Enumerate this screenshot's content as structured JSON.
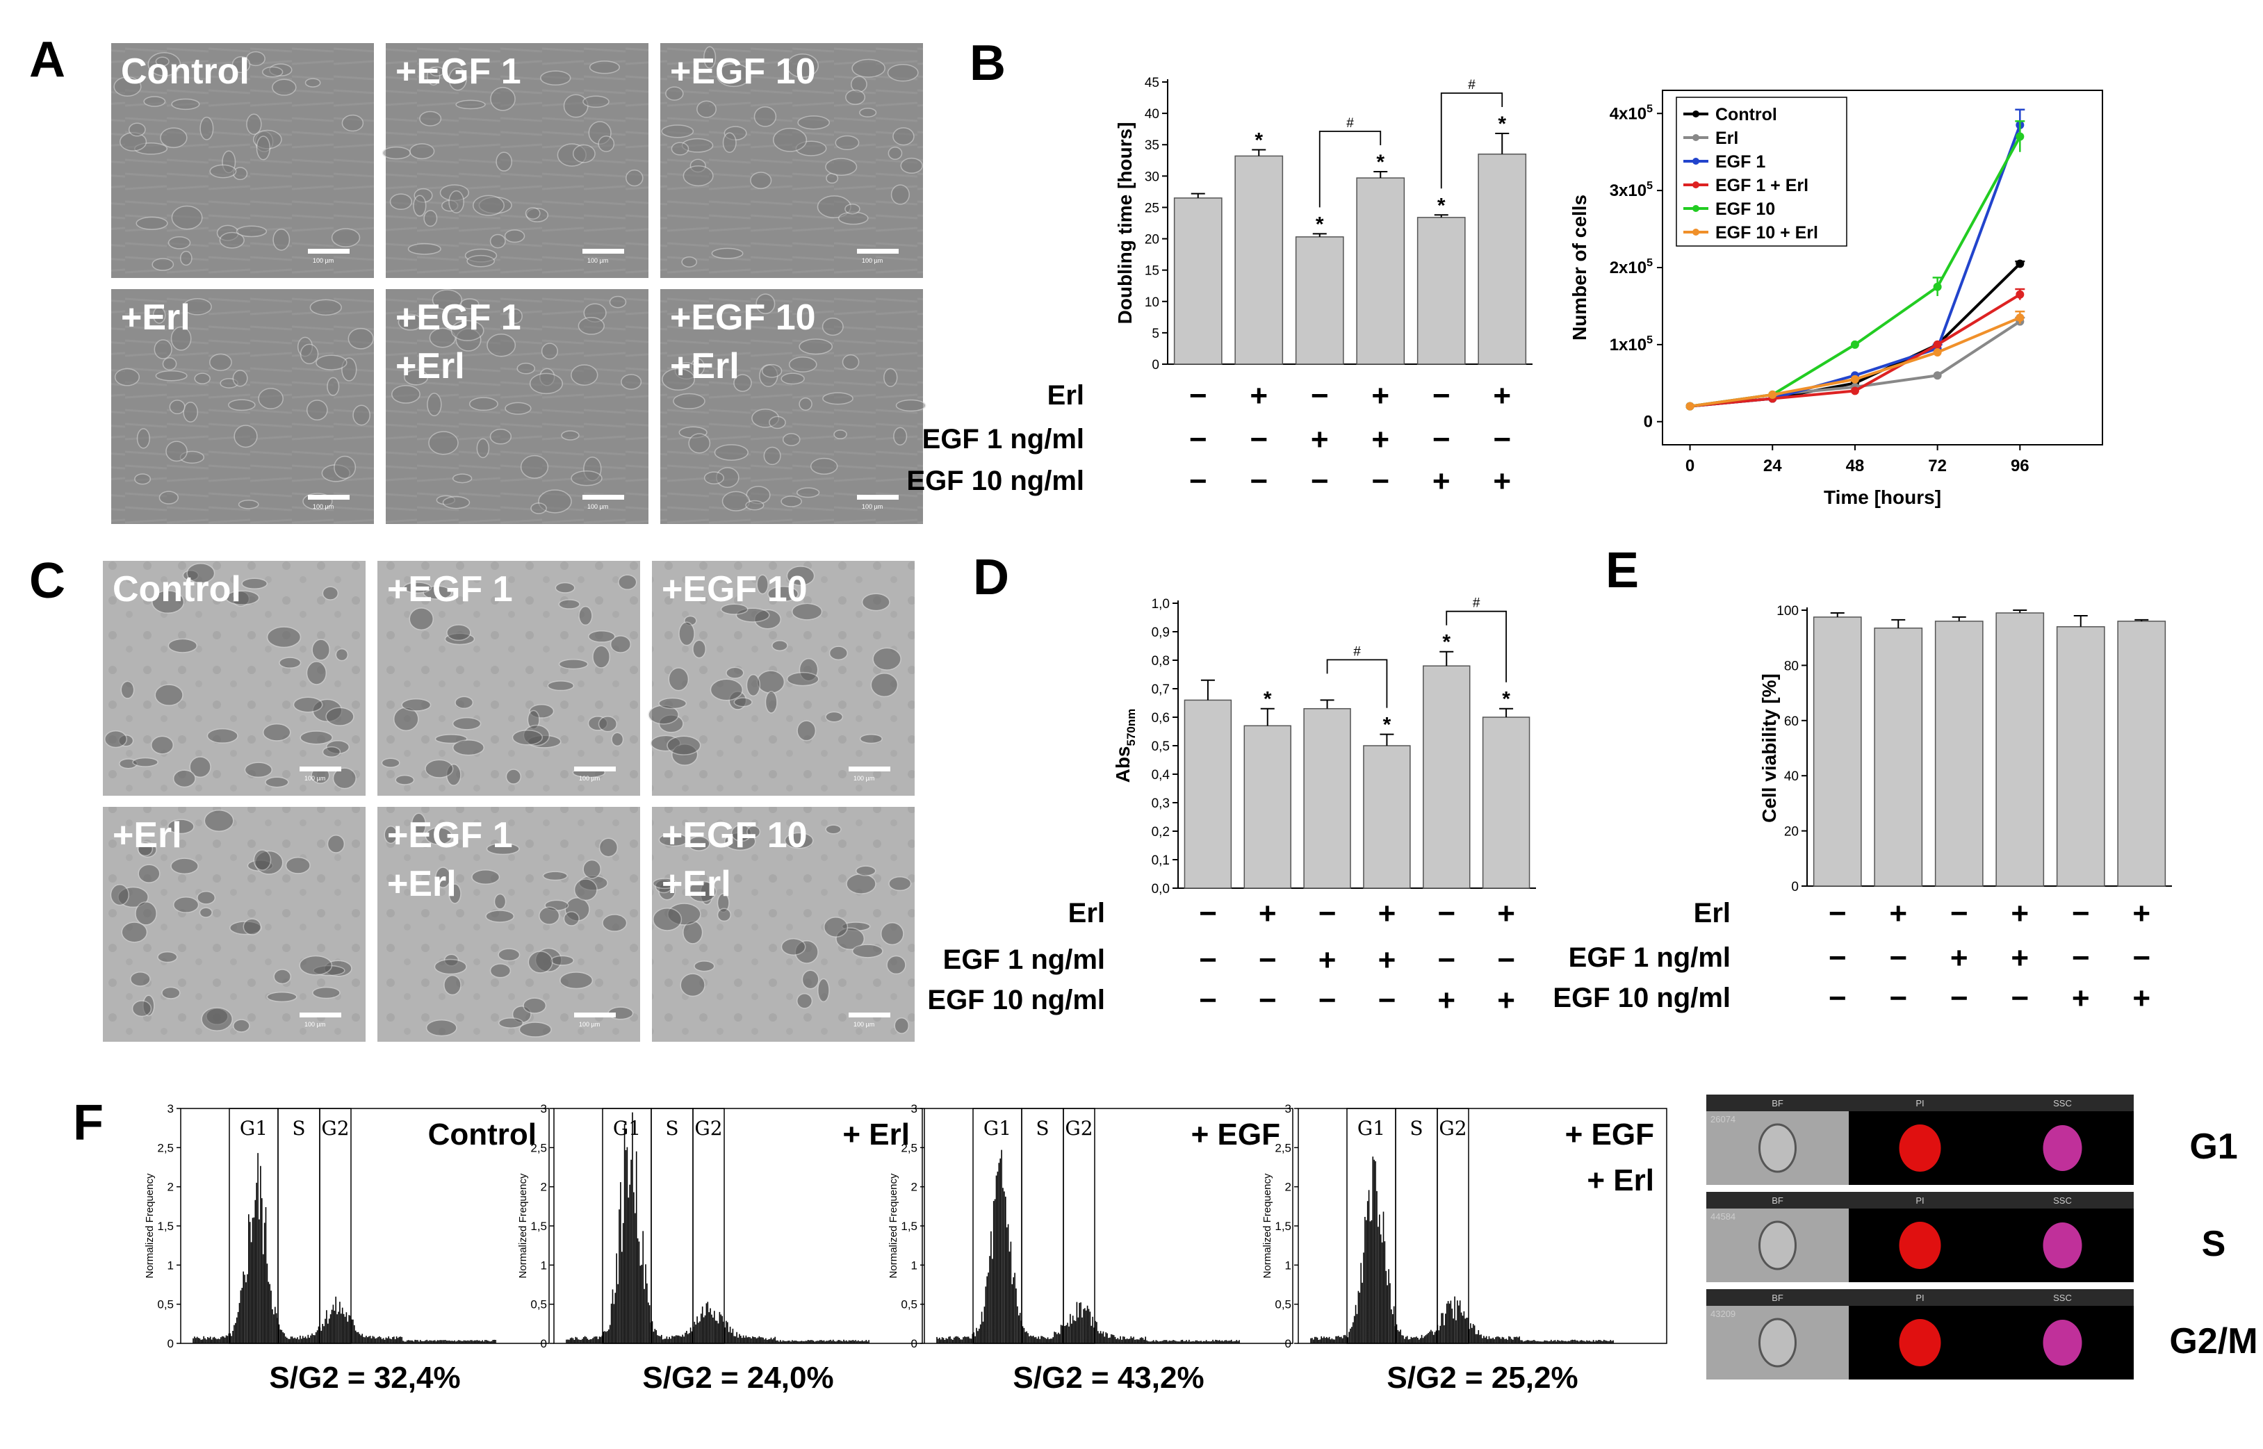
{
  "panels": {
    "A": "A",
    "B": "B",
    "C": "C",
    "D": "D",
    "E": "E",
    "F": "F"
  },
  "micrographs_A": {
    "labels": [
      [
        "Control"
      ],
      [
        "+EGF 1"
      ],
      [
        "+EGF 10"
      ],
      [
        "+Erl"
      ],
      [
        "+EGF 1",
        "+Erl"
      ],
      [
        "+EGF 10",
        "+Erl"
      ]
    ],
    "scale": "100 µm"
  },
  "micrographs_C": {
    "labels": [
      [
        "Control"
      ],
      [
        "+EGF 1"
      ],
      [
        "+EGF 10"
      ],
      [
        "+Erl"
      ],
      [
        "+EGF 1",
        "+Erl"
      ],
      [
        "+EGF 10",
        "+Erl"
      ]
    ],
    "scale": "100 µm"
  },
  "conditions": {
    "rows": [
      "Erl",
      "EGF 1 ng/ml",
      "EGF 10 ng/ml"
    ],
    "values": [
      [
        "−",
        "+",
        "−",
        "+",
        "−",
        "+"
      ],
      [
        "−",
        "−",
        "+",
        "+",
        "−",
        "−"
      ],
      [
        "−",
        "−",
        "−",
        "−",
        "+",
        "+"
      ]
    ]
  },
  "chart_data": [
    {
      "id": "B-doubling",
      "type": "bar",
      "ylabel": "Doubling time [hours]",
      "ylim": [
        0,
        45
      ],
      "yticks": [
        0,
        5,
        10,
        15,
        20,
        25,
        30,
        35,
        40,
        45
      ],
      "values": [
        26.5,
        33.2,
        20.3,
        29.7,
        23.4,
        33.5
      ],
      "errors": [
        0.7,
        1.0,
        0.5,
        1.0,
        0.4,
        3.3
      ],
      "stars": [
        false,
        true,
        true,
        true,
        true,
        true
      ],
      "hash": [
        [
          2,
          3
        ],
        [
          4,
          5
        ]
      ],
      "star_symbol": "*",
      "hash_symbol": "#"
    },
    {
      "id": "B-growth",
      "type": "line",
      "xlabel": "Time [hours]",
      "ylabel": "Number of cells",
      "x": [
        0,
        24,
        48,
        72,
        96
      ],
      "xlim": [
        -8,
        120
      ],
      "ylim": [
        -0.3,
        4.3
      ],
      "yticks": [
        0,
        1,
        2,
        3,
        4
      ],
      "yticklabels": [
        "0",
        "1x10",
        "2x10",
        "3x10",
        "4x10"
      ],
      "ytickexp": "5",
      "legend_position": "top-left",
      "series": [
        {
          "name": "Control",
          "color": "#000000",
          "values": [
            0.2,
            0.3,
            0.5,
            1.0,
            2.05
          ],
          "err": [
            0,
            0,
            0,
            0,
            0.03
          ]
        },
        {
          "name": "Erl",
          "color": "#888888",
          "values": [
            0.2,
            0.35,
            0.45,
            0.6,
            1.3
          ],
          "err": [
            0,
            0,
            0,
            0,
            0.05
          ]
        },
        {
          "name": "EGF 1",
          "color": "#2244cc",
          "values": [
            0.2,
            0.3,
            0.6,
            0.95,
            3.85
          ],
          "err": [
            0,
            0,
            0,
            0.05,
            0.2
          ]
        },
        {
          "name": "EGF 1 + Erl",
          "color": "#dd2222",
          "values": [
            0.2,
            0.3,
            0.4,
            1.0,
            1.65
          ],
          "err": [
            0,
            0,
            0,
            0,
            0.07
          ]
        },
        {
          "name": "EGF 10",
          "color": "#22cc22",
          "values": [
            0.2,
            0.35,
            1.0,
            1.75,
            3.7
          ],
          "err": [
            0,
            0,
            0,
            0.12,
            0.2
          ]
        },
        {
          "name": "EGF 10 + Erl",
          "color": "#f0902a",
          "values": [
            0.2,
            0.35,
            0.55,
            0.9,
            1.35
          ],
          "err": [
            0,
            0,
            0,
            0,
            0.08
          ]
        }
      ]
    },
    {
      "id": "D-abs",
      "type": "bar",
      "ylabel": "Abs",
      "ylabel_sub": "570nm",
      "ylim": [
        0,
        1.0
      ],
      "yticks": [
        "0,0",
        "0,1",
        "0,2",
        "0,3",
        "0,4",
        "0,5",
        "0,6",
        "0,7",
        "0,8",
        "0,9",
        "1,0"
      ],
      "values": [
        0.66,
        0.57,
        0.63,
        0.5,
        0.78,
        0.6
      ],
      "errors": [
        0.07,
        0.06,
        0.03,
        0.04,
        0.05,
        0.03
      ],
      "stars": [
        false,
        true,
        false,
        true,
        true,
        true
      ],
      "hash": [
        [
          2,
          3
        ],
        [
          4,
          5
        ]
      ],
      "star_symbol": "*",
      "hash_symbol": "#"
    },
    {
      "id": "E-viability",
      "type": "bar",
      "ylabel": "Cell viability [%]",
      "ylim": [
        0,
        100
      ],
      "yticks": [
        0,
        20,
        40,
        60,
        80,
        100
      ],
      "values": [
        97.5,
        93.5,
        96,
        99,
        94,
        96
      ],
      "errors": [
        1.5,
        3.0,
        1.5,
        1.0,
        4.0,
        0.5
      ]
    },
    {
      "id": "F-histograms",
      "type": "histogram",
      "ylabel": "Normalized Frequency",
      "yticks": [
        "0",
        "0,5",
        "1",
        "1,5",
        "2",
        "2,5",
        "3"
      ],
      "gates": [
        "G1",
        "S",
        "G2"
      ],
      "plots": [
        {
          "title": [
            "Control"
          ],
          "footer": "S/G2 = 32,4%",
          "peak": 2.2
        },
        {
          "title": [
            "+ Erl"
          ],
          "footer": "S/G2 = 24,0%",
          "peak": 2.85
        },
        {
          "title": [
            "+ EGF"
          ],
          "footer": "S/G2 = 43,2%",
          "peak": 2.1
        },
        {
          "title": [
            "+ EGF",
            "+ Erl"
          ],
          "footer": "S/G2 = 25,2%",
          "peak": 2.6
        }
      ]
    }
  ],
  "imaging": {
    "channels": [
      "BF",
      "PI",
      "SSC"
    ],
    "phases": [
      "G1",
      "S",
      "G2/M"
    ],
    "ids": [
      "26074",
      "44584",
      "43209"
    ]
  }
}
